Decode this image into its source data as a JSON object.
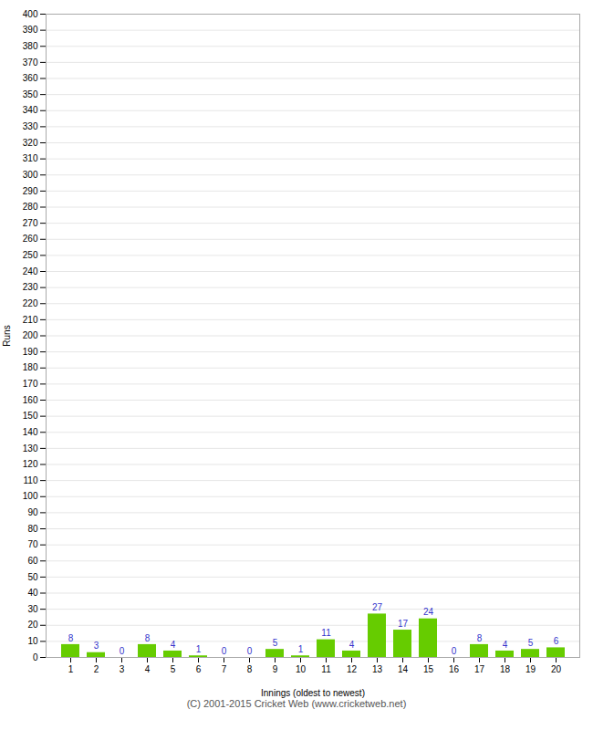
{
  "chart_data": {
    "type": "bar",
    "categories": [
      "1",
      "2",
      "3",
      "4",
      "5",
      "6",
      "7",
      "8",
      "9",
      "10",
      "11",
      "12",
      "13",
      "14",
      "15",
      "16",
      "17",
      "18",
      "19",
      "20"
    ],
    "values": [
      8,
      3,
      0,
      8,
      4,
      1,
      0,
      0,
      5,
      1,
      11,
      4,
      27,
      17,
      24,
      0,
      8,
      4,
      5,
      6
    ],
    "color": "#66cc00",
    "xlabel": "Innings (oldest to newest)",
    "ylabel": "Runs",
    "ylim": [
      0,
      400
    ],
    "yticks": [
      0,
      10,
      20,
      30,
      40,
      50,
      60,
      70,
      80,
      90,
      100,
      110,
      120,
      130,
      140,
      150,
      160,
      170,
      180,
      190,
      200,
      210,
      220,
      230,
      240,
      250,
      260,
      270,
      280,
      290,
      300,
      310,
      320,
      330,
      340,
      350,
      360,
      370,
      380,
      390,
      400
    ],
    "grid": true,
    "data_labels": true,
    "caption": "(C) 2001-2015 Cricket Web (www.cricketweb.net)"
  }
}
